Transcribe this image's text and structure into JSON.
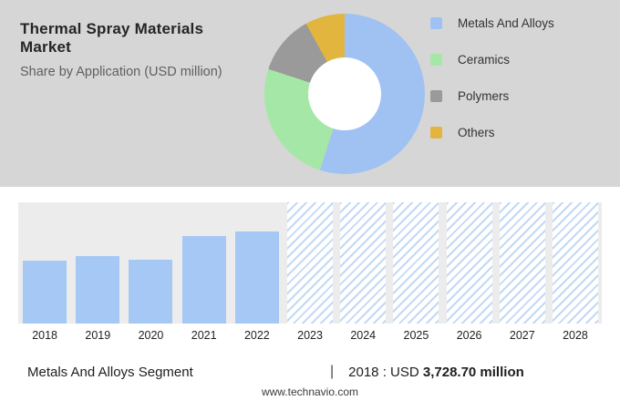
{
  "header": {
    "title": "Thermal Spray Materials Market",
    "subtitle": "Share by Application (USD million)"
  },
  "legend": [
    {
      "label": "Metals And Alloys",
      "color": "#9fc2f2"
    },
    {
      "label": "Ceramics",
      "color": "#a5e7a7"
    },
    {
      "label": "Polymers",
      "color": "#9a9a9a"
    },
    {
      "label": "Others",
      "color": "#e2b53e"
    }
  ],
  "chart_data": [
    {
      "type": "pie",
      "style": "donut",
      "title": "Share by Application (USD million)",
      "labels": [
        "Metals And Alloys",
        "Ceramics",
        "Polymers",
        "Others"
      ],
      "values_pct": [
        55,
        25,
        12,
        8
      ],
      "colors": [
        "#9fc2f2",
        "#a5e7a7",
        "#9a9a9a",
        "#e2b53e"
      ],
      "legend_position": "right"
    },
    {
      "type": "bar",
      "categories": [
        "2018",
        "2019",
        "2020",
        "2021",
        "2022",
        "2023",
        "2024",
        "2025",
        "2026",
        "2027",
        "2028"
      ],
      "series": [
        {
          "name": "Metals And Alloys",
          "relative_height_pct": [
            52,
            56,
            53,
            72,
            76
          ]
        }
      ],
      "forecast_years": [
        "2023",
        "2024",
        "2025",
        "2026",
        "2027",
        "2028"
      ],
      "forecast_style": "hatched-full-height",
      "bar_color": "#a6c8f5",
      "ylabel": "",
      "xlabel": "",
      "note": "No y-axis tick values shown; historical bar heights estimated as % of plot height"
    }
  ],
  "summary": {
    "segment": "Metals And Alloys Segment",
    "separator": "|",
    "value_prefix": "2018 : USD",
    "value_bold": "3,728.70 million"
  },
  "footer": {
    "url": "www.technavio.com"
  }
}
